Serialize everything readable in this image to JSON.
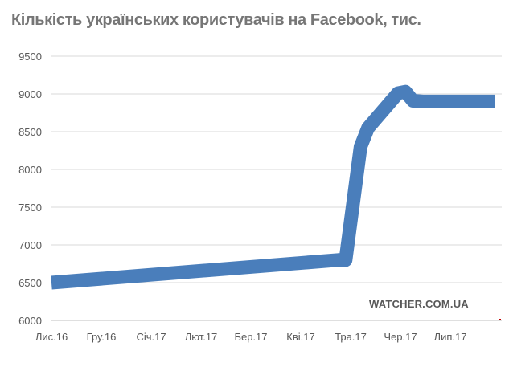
{
  "chart_data": {
    "type": "line",
    "title": "Кількість українських користувачів на Facebook, тис.",
    "xlabel": "",
    "ylabel": "",
    "categories": [
      "Лис.16",
      "Гру.16",
      "Січ.17",
      "Лют.17",
      "Бер.17",
      "Кві.17",
      "Тра.17",
      "Чер.17",
      "Лип.17"
    ],
    "ylim": [
      6000,
      9500
    ],
    "yticks": [
      6000,
      6500,
      7000,
      7500,
      8000,
      8500,
      9000,
      9500
    ],
    "grid": true,
    "legend": "none",
    "series": [
      {
        "x": [
          0,
          5.75,
          5.9,
          6.2,
          6.35,
          6.95,
          7.1,
          7.25,
          7.45,
          8.9
        ],
        "values": [
          6500,
          6800,
          6800,
          8300,
          8550,
          9010,
          9030,
          8910,
          8900,
          8900
        ],
        "color": "#4A7EBB"
      }
    ]
  },
  "watermark": "WATCHER.COM.UA"
}
